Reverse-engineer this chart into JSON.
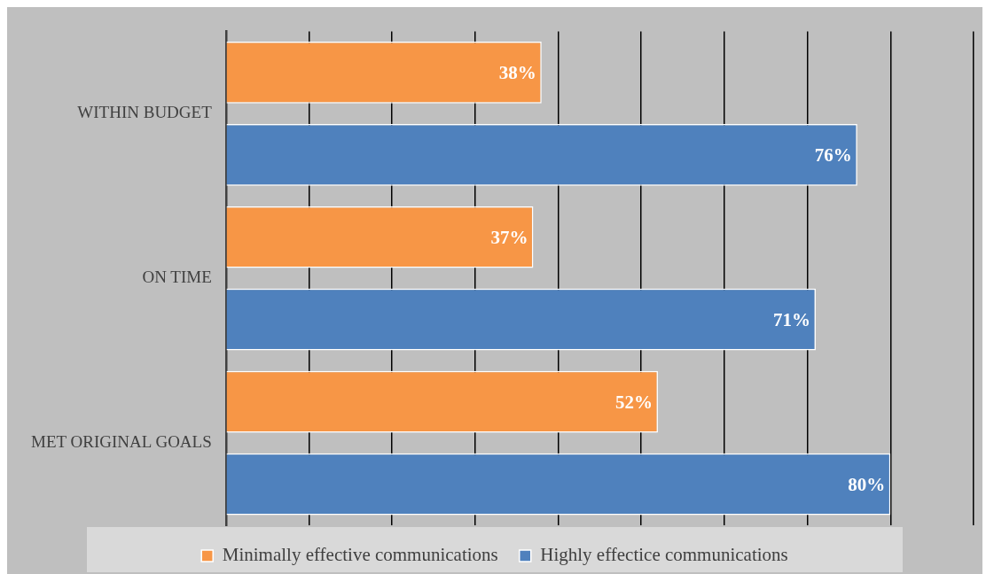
{
  "chart_data": {
    "type": "bar",
    "orientation": "horizontal",
    "categories": [
      "WITHIN BUDGET",
      "ON TIME",
      "MET ORIGINAL GOALS"
    ],
    "series": [
      {
        "name": "Minimally effective communications",
        "color": "#f79646",
        "values": [
          38,
          37,
          52
        ],
        "value_labels": [
          "38%",
          "37%",
          "52%"
        ]
      },
      {
        "name": "Highly effectice communications",
        "color": "#4f81bd",
        "values": [
          76,
          71,
          80
        ],
        "value_labels": [
          "76%",
          "71%",
          "80%"
        ]
      }
    ],
    "tick_labels": "y",
    "grid": "x",
    "legend": "bottom"
  }
}
